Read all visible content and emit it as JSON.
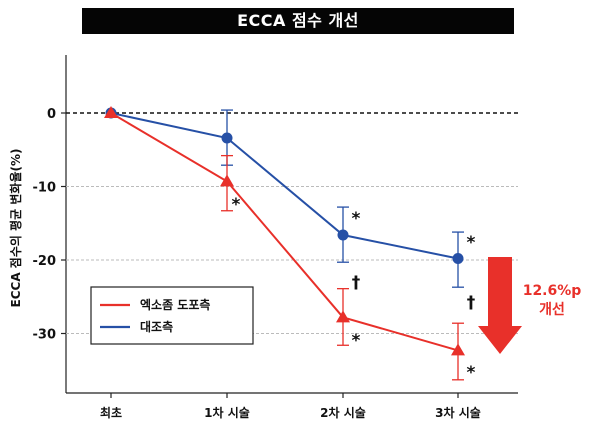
{
  "header": {
    "title": "ECCA 점수 개선"
  },
  "chart_data": {
    "type": "line",
    "title": "ECCA 점수 개선",
    "ylabel": "ECCA 점수의 평균 변화율(%)",
    "xlabel": "",
    "categories": [
      "최초",
      "1차 시술",
      "2차 시술",
      "3차 시술"
    ],
    "ylim": [
      -37,
      8
    ],
    "yticks": [
      0,
      -10,
      -20,
      -30
    ],
    "ytick_labels": [
      "0",
      "-10",
      "-20",
      "-30"
    ],
    "grid": "horizontal dashed at -10, -20, -30; black dashed at 0",
    "legend_position": "bottom-left",
    "series": [
      {
        "name": "엑소좀 도포측",
        "color": "#e8302a",
        "marker": "triangle",
        "values": [
          0,
          -9.3,
          -27.8,
          -32.3
        ],
        "err_low": [
          0,
          4.0,
          3.8,
          4.0
        ],
        "err_high": [
          0,
          3.5,
          3.9,
          3.7
        ]
      },
      {
        "name": "대조측",
        "color": "#2650a6",
        "marker": "circle",
        "values": [
          0,
          -3.4,
          -16.6,
          -19.8
        ],
        "err_low": [
          0,
          3.7,
          3.7,
          3.9
        ],
        "err_high": [
          0,
          3.8,
          3.8,
          3.6
        ]
      }
    ],
    "annotations": [
      {
        "text": "*",
        "category": 1,
        "near_series": 0
      },
      {
        "text": "*",
        "category": 2,
        "near_series": 1
      },
      {
        "text": "†",
        "category": 2,
        "between": true
      },
      {
        "text": "*",
        "category": 2,
        "near_series": 0
      },
      {
        "text": "*",
        "category": 3,
        "near_series": 1
      },
      {
        "text": "†",
        "category": 3,
        "between": true
      },
      {
        "text": "*",
        "category": 3,
        "near_series": 0
      }
    ],
    "improvement_callout": {
      "line1": "12.6%p",
      "line2": "개선",
      "color": "#e8302a"
    }
  }
}
